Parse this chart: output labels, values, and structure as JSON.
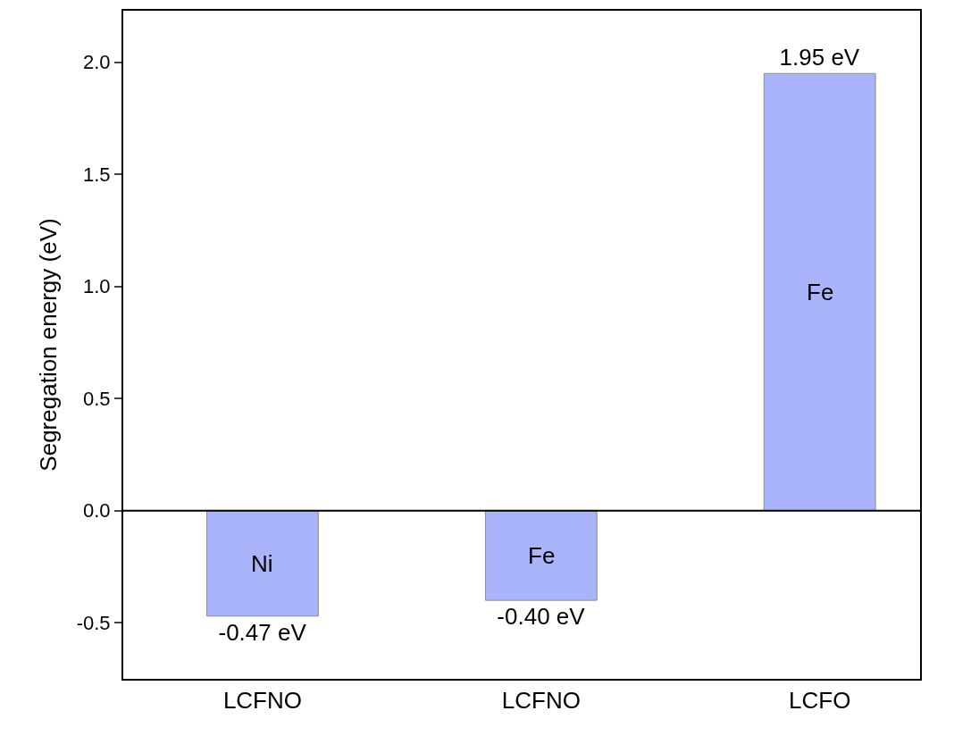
{
  "chart_data": {
    "type": "bar",
    "ylabel": "Segregation energy (eV)",
    "categories": [
      "LCFNO",
      "LCFNO",
      "LCFO"
    ],
    "values": [
      -0.47,
      -0.4,
      1.95
    ],
    "value_labels": [
      "-0.47 eV",
      "-0.40 eV",
      "1.95 eV"
    ],
    "color": "#aab4fb",
    "ylim": [
      -0.75,
      2.23
    ],
    "yticks": [
      -0.5,
      {
        "value": 0,
        "label": "0.0"
      },
      0.5,
      {
        "value": 1,
        "label": "1.0"
      },
      1.5,
      {
        "value": 2,
        "label": "2.0"
      }
    ],
    "ref_lines": [
      {
        "axis": "y",
        "value": 0,
        "color": "#000000"
      }
    ],
    "annotations": [
      "Ni",
      "Fe",
      "Fe"
    ]
  }
}
